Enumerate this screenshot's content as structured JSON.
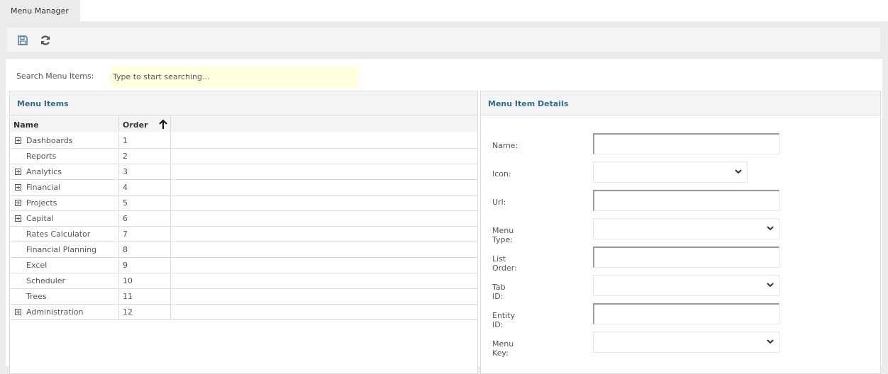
{
  "tab": {
    "label": "Menu Manager"
  },
  "toolbar": {
    "save_icon": "floppy-disk-icon",
    "refresh_icon": "refresh-icon"
  },
  "search": {
    "label": "Search Menu Items:",
    "placeholder": "Type to start searching...",
    "value": ""
  },
  "menu_items": {
    "title": "Menu Items",
    "columns": [
      "Name",
      "Order"
    ],
    "sort": {
      "column": "Order",
      "direction": "ascending"
    },
    "rows": [
      {
        "name": "Dashboards",
        "order": "1",
        "expandable": true
      },
      {
        "name": "Reports",
        "order": "2",
        "expandable": false
      },
      {
        "name": "Analytics",
        "order": "3",
        "expandable": true
      },
      {
        "name": "Financial",
        "order": "4",
        "expandable": true
      },
      {
        "name": "Projects",
        "order": "5",
        "expandable": true
      },
      {
        "name": "Capital",
        "order": "6",
        "expandable": true
      },
      {
        "name": "Rates Calculator",
        "order": "7",
        "expandable": false
      },
      {
        "name": "Financial Planning",
        "order": "8",
        "expandable": false
      },
      {
        "name": "Excel",
        "order": "9",
        "expandable": false
      },
      {
        "name": "Scheduler",
        "order": "10",
        "expandable": false
      },
      {
        "name": "Trees",
        "order": "11",
        "expandable": false
      },
      {
        "name": "Administration",
        "order": "12",
        "expandable": true
      }
    ]
  },
  "details": {
    "title": "Menu Item Details",
    "fields": [
      {
        "label": "Name:",
        "type": "text",
        "value": ""
      },
      {
        "label": "Icon:",
        "type": "select",
        "value": ""
      },
      {
        "label": "Url:",
        "type": "text",
        "value": ""
      },
      {
        "label": "Menu Type:",
        "type": "select",
        "value": ""
      },
      {
        "label": "List Order:",
        "type": "text",
        "value": ""
      },
      {
        "label": "Tab ID:",
        "type": "select",
        "value": ""
      },
      {
        "label": "Entity ID:",
        "type": "text",
        "value": ""
      },
      {
        "label": "Menu Key:",
        "type": "select",
        "value": ""
      }
    ]
  },
  "colors": {
    "header_text": "#2e6e93",
    "search_bg": "#ffffdd"
  }
}
